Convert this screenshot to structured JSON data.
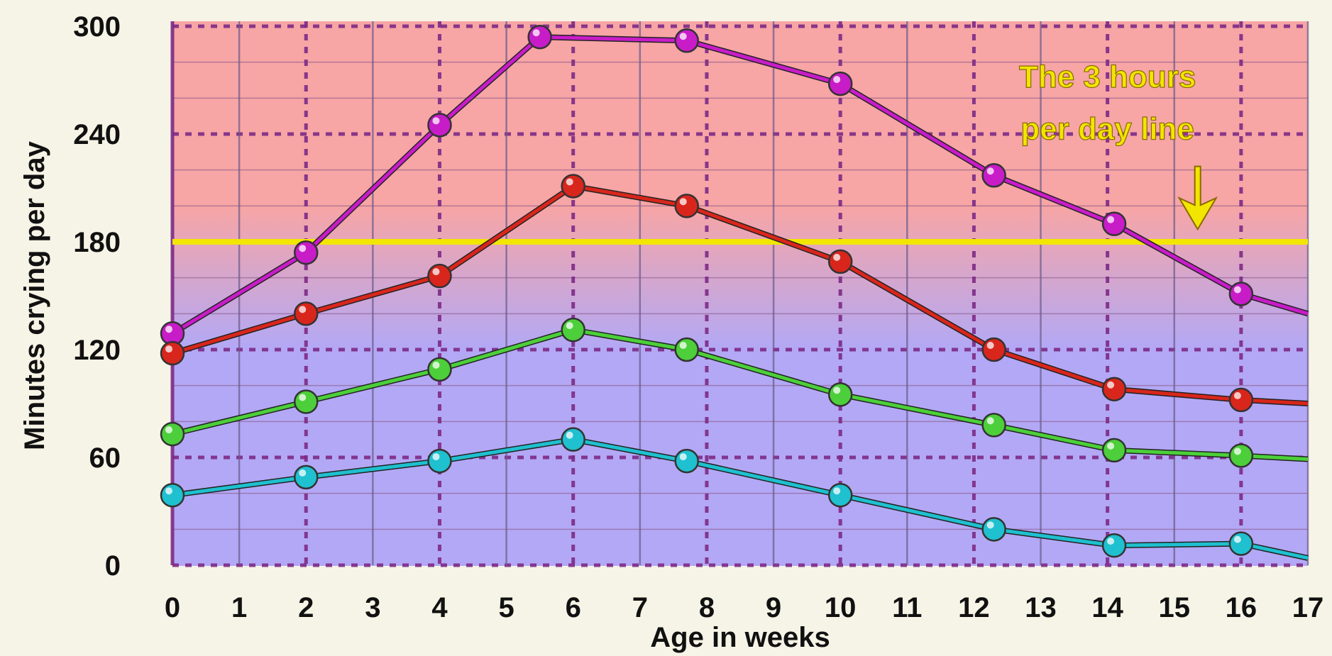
{
  "chart_data": {
    "type": "line",
    "xlabel": "Age in weeks",
    "ylabel": "Minutes crying per day",
    "xlim": [
      0,
      17
    ],
    "ylim": [
      0,
      300
    ],
    "x_ticks": [
      "0",
      "1",
      "2",
      "3",
      "4",
      "5",
      "6",
      "7",
      "8",
      "9",
      "10",
      "11",
      "12",
      "13",
      "14",
      "15",
      "16",
      "17"
    ],
    "y_ticks": [
      "0",
      "60",
      "120",
      "180",
      "240",
      "300"
    ],
    "reference_line": {
      "y": 180,
      "color": "#f2e600"
    },
    "annotation": {
      "lines": [
        "The 3 hours",
        "per day line"
      ],
      "color": "#f2e600"
    },
    "background": {
      "top_color": "#f7a5a5",
      "bottom_color": "#b3a8f5"
    },
    "grid": true,
    "series": [
      {
        "color": "#c81cc8",
        "points": [
          [
            0,
            129
          ],
          [
            2,
            174
          ],
          [
            4,
            245
          ],
          [
            5.5,
            294
          ],
          [
            7.7,
            292
          ],
          [
            10,
            268
          ],
          [
            12.3,
            217
          ],
          [
            14.1,
            190
          ],
          [
            16,
            151
          ],
          [
            17,
            140
          ]
        ]
      },
      {
        "color": "#d8261c",
        "points": [
          [
            0,
            118
          ],
          [
            2,
            140
          ],
          [
            4,
            161
          ],
          [
            6,
            211
          ],
          [
            7.7,
            200
          ],
          [
            10,
            169
          ],
          [
            12.3,
            120
          ],
          [
            14.1,
            98
          ],
          [
            16,
            92
          ],
          [
            17,
            90
          ]
        ]
      },
      {
        "color": "#4ccf3a",
        "points": [
          [
            0,
            73
          ],
          [
            2,
            91
          ],
          [
            4,
            109
          ],
          [
            6,
            131
          ],
          [
            7.7,
            120
          ],
          [
            10,
            95
          ],
          [
            12.3,
            78
          ],
          [
            14.1,
            64
          ],
          [
            16,
            61
          ],
          [
            17,
            59
          ]
        ]
      },
      {
        "color": "#1fc0cf",
        "points": [
          [
            0,
            39
          ],
          [
            2,
            49
          ],
          [
            4,
            58
          ],
          [
            6,
            70
          ],
          [
            7.7,
            58
          ],
          [
            10,
            39
          ],
          [
            12.3,
            20
          ],
          [
            14.1,
            11
          ],
          [
            16,
            12
          ],
          [
            17,
            4
          ]
        ]
      }
    ]
  }
}
